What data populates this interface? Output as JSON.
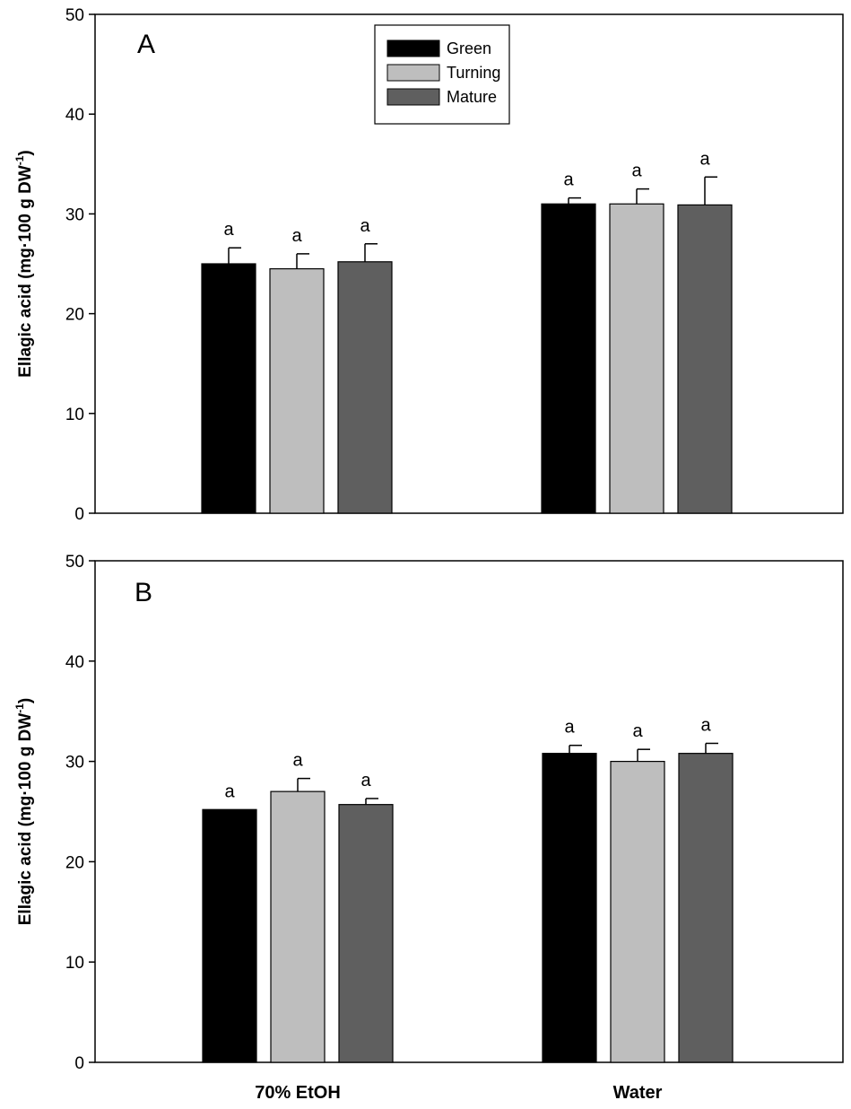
{
  "colors": {
    "Green": "#000000",
    "Turning": "#bebebe",
    "Mature": "#5f5f5f",
    "axis": "#000000",
    "background": "#ffffff"
  },
  "chart_data": [
    {
      "type": "bar",
      "panel_label": "A",
      "categories": [
        "70% EtOH",
        "Water"
      ],
      "series": [
        {
          "name": "Green",
          "values": [
            25.0,
            31.0
          ],
          "errors": [
            1.6,
            0.6
          ],
          "labels": [
            "a",
            "a"
          ]
        },
        {
          "name": "Turning",
          "values": [
            24.5,
            31.0
          ],
          "errors": [
            1.5,
            1.5
          ],
          "labels": [
            "a",
            "a"
          ]
        },
        {
          "name": "Mature",
          "values": [
            25.2,
            30.9
          ],
          "errors": [
            1.8,
            2.8
          ],
          "labels": [
            "a",
            "a"
          ]
        }
      ],
      "ylabel": {
        "main": "Ellagic acid (mg·100 g DW",
        "sup": "-1",
        "close": ")"
      },
      "ylim": [
        0,
        50
      ],
      "yticks": [
        0,
        10,
        20,
        30,
        40,
        50
      ],
      "legend": {
        "position": "top-center",
        "entries": [
          "Green",
          "Turning",
          "Mature"
        ]
      },
      "grid": false
    },
    {
      "type": "bar",
      "panel_label": "B",
      "categories": [
        "70% EtOH",
        "Water"
      ],
      "series": [
        {
          "name": "Green",
          "values": [
            25.2,
            30.8
          ],
          "errors": [
            0.0,
            0.8
          ],
          "labels": [
            "a",
            "a"
          ]
        },
        {
          "name": "Turning",
          "values": [
            27.0,
            30.0
          ],
          "errors": [
            1.3,
            1.2
          ],
          "labels": [
            "a",
            "a"
          ]
        },
        {
          "name": "Mature",
          "values": [
            25.7,
            30.8
          ],
          "errors": [
            0.6,
            1.0
          ],
          "labels": [
            "a",
            "a"
          ]
        }
      ],
      "ylabel": {
        "main": "Ellagic acid (mg·100 g DW",
        "sup": "-1",
        "close": ")"
      },
      "ylim": [
        0,
        50
      ],
      "yticks": [
        0,
        10,
        20,
        30,
        40,
        50
      ],
      "xlabels": [
        "70% EtOH",
        "Water"
      ],
      "grid": false
    }
  ]
}
